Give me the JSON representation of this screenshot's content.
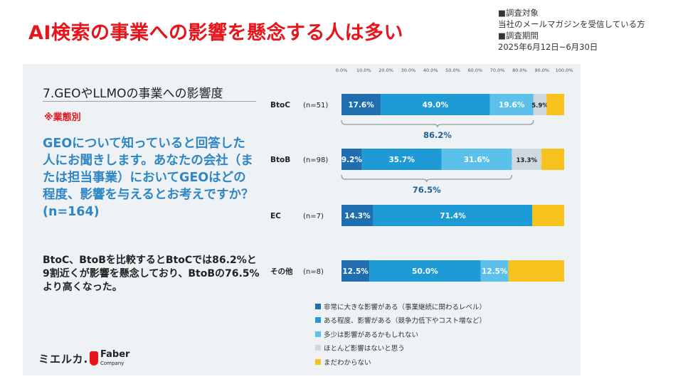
{
  "title": "AI検索の事業への影響を懸念する人は多い",
  "survey": {
    "target_label": "■調査対象",
    "target_value": "当社のメールマガジンを受信している方",
    "period_label": "■調査期間",
    "period_value": "2025年6月12日~6月30日"
  },
  "left": {
    "section_title": "7.GEOやLLMOの事業への影響度",
    "segment_note": "※業態別",
    "question": "GEOについて知っていると回答した人にお聞きします。あなたの会社（または担当事業）においてGEOはどの程度、影響を与えるとお考えですか？(n=164)",
    "conclusion": "BtoC、BtoBを比較するとBtoCでは86.2%と9割近くが影響を懸念しており、BtoBの76.5%より高くなった。"
  },
  "logos": {
    "mieruca": "ミエルカ.",
    "faber": "Faber",
    "faber_sub": "Company"
  },
  "colors": {
    "title_red": "#e8141b",
    "question_blue": "#2f86c5",
    "very_large": "#1f6fb0",
    "some_impact": "#1e9ad6",
    "maybe": "#5bc1ea",
    "almost_none": "#cfd8de",
    "unknown": "#f8c21d"
  },
  "chart_data": {
    "type": "bar",
    "orientation": "horizontal",
    "stacked": true,
    "x_ticks": [
      "0.0%",
      "10.0%",
      "20.0%",
      "30.0%",
      "40.0%",
      "50.0%",
      "60.0%",
      "70.0%",
      "80.0%",
      "90.0%",
      "100.0%"
    ],
    "xlim": [
      0,
      100
    ],
    "categories": [
      "BtoC",
      "BtoB",
      "EC",
      "その他"
    ],
    "n_labels": [
      "(n=51)",
      "(n=98)",
      "(n=7)",
      "(n=8)"
    ],
    "series": [
      {
        "name": "非常に大きな影響がある（事業継続に関わるレベル）",
        "values": [
          17.6,
          9.2,
          14.3,
          12.5
        ],
        "labels": [
          "17.6%",
          "9.2%",
          "14.3%",
          "12.5%"
        ],
        "color": "#1f6fb0"
      },
      {
        "name": "ある程度、影響がある（競争力低下やコスト増など）",
        "values": [
          49.0,
          35.7,
          71.4,
          50.0
        ],
        "labels": [
          "49.0%",
          "35.7%",
          "71.4%",
          "50.0%"
        ],
        "color": "#1e9ad6"
      },
      {
        "name": "多少は影響があるかもしれない",
        "values": [
          19.6,
          31.6,
          0,
          12.5
        ],
        "labels": [
          "19.6%",
          "31.6%",
          "",
          "12.5%"
        ],
        "color": "#5bc1ea"
      },
      {
        "name": "ほとんど影響はないと思う",
        "values": [
          5.9,
          13.3,
          0,
          0
        ],
        "labels": [
          "5.9%",
          "13.3%",
          "",
          ""
        ],
        "color": "#cfd8de"
      },
      {
        "name": "まだわからない",
        "values": [
          7.9,
          10.2,
          14.3,
          25.0
        ],
        "labels": [
          "",
          "",
          "",
          ""
        ],
        "color": "#f8c21d"
      }
    ],
    "annotations": [
      {
        "category": "BtoC",
        "text": "86.2%",
        "from": 0,
        "to": 86.2
      },
      {
        "category": "BtoB",
        "text": "76.5%",
        "from": 0,
        "to": 76.5
      }
    ],
    "legend_position": "bottom",
    "grid": false
  }
}
